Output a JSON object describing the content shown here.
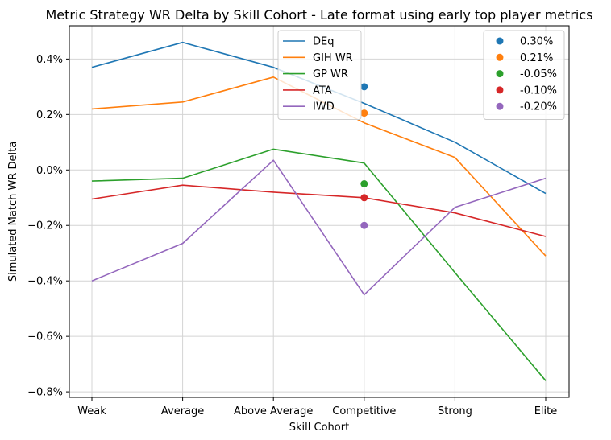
{
  "chart_data": {
    "type": "line",
    "title": "Metric Strategy WR Delta by Skill Cohort - Late format using early top player metrics",
    "xlabel": "Skill Cohort",
    "ylabel": "Simulated Match WR Delta",
    "categories": [
      "Weak",
      "Average",
      "Above Average",
      "Competitive",
      "Strong",
      "Elite"
    ],
    "ylim": [
      -0.82,
      0.52
    ],
    "yticks": [
      0.4,
      0.2,
      0.0,
      -0.2,
      -0.4,
      -0.6,
      -0.8
    ],
    "ytick_labels": [
      "0.4%",
      "0.2%",
      "0.0%",
      "−0.2%",
      "−0.4%",
      "−0.6%",
      "−0.8%"
    ],
    "grid": true,
    "series": [
      {
        "name": "DEq",
        "color": "#1f77b4",
        "values": [
          0.37,
          0.46,
          0.37,
          0.24,
          0.1,
          -0.085
        ]
      },
      {
        "name": "GIH WR",
        "color": "#ff7f0e",
        "values": [
          0.22,
          0.245,
          0.335,
          0.17,
          0.045,
          -0.31
        ]
      },
      {
        "name": "GP WR",
        "color": "#2ca02c",
        "values": [
          -0.04,
          -0.03,
          0.075,
          0.025,
          -0.37,
          -0.76
        ]
      },
      {
        "name": "ATA",
        "color": "#d62728",
        "values": [
          -0.105,
          -0.055,
          -0.08,
          -0.1,
          -0.155,
          -0.24
        ]
      },
      {
        "name": "IWD",
        "color": "#9467bd",
        "values": [
          -0.4,
          -0.265,
          0.035,
          -0.45,
          -0.135,
          -0.03
        ]
      }
    ],
    "points": [
      {
        "label": "0.30%",
        "color": "#1f77b4",
        "x": "Competitive",
        "y": 0.3
      },
      {
        "label": "0.21%",
        "color": "#ff7f0e",
        "x": "Competitive",
        "y": 0.205
      },
      {
        "label": "-0.05%",
        "color": "#2ca02c",
        "x": "Competitive",
        "y": -0.05
      },
      {
        "label": "-0.10%",
        "color": "#d62728",
        "x": "Competitive",
        "y": -0.1
      },
      {
        "label": "-0.20%",
        "color": "#9467bd",
        "x": "Competitive",
        "y": -0.2
      }
    ],
    "legends": [
      "top-center (lines)",
      "top-right (points)"
    ]
  }
}
